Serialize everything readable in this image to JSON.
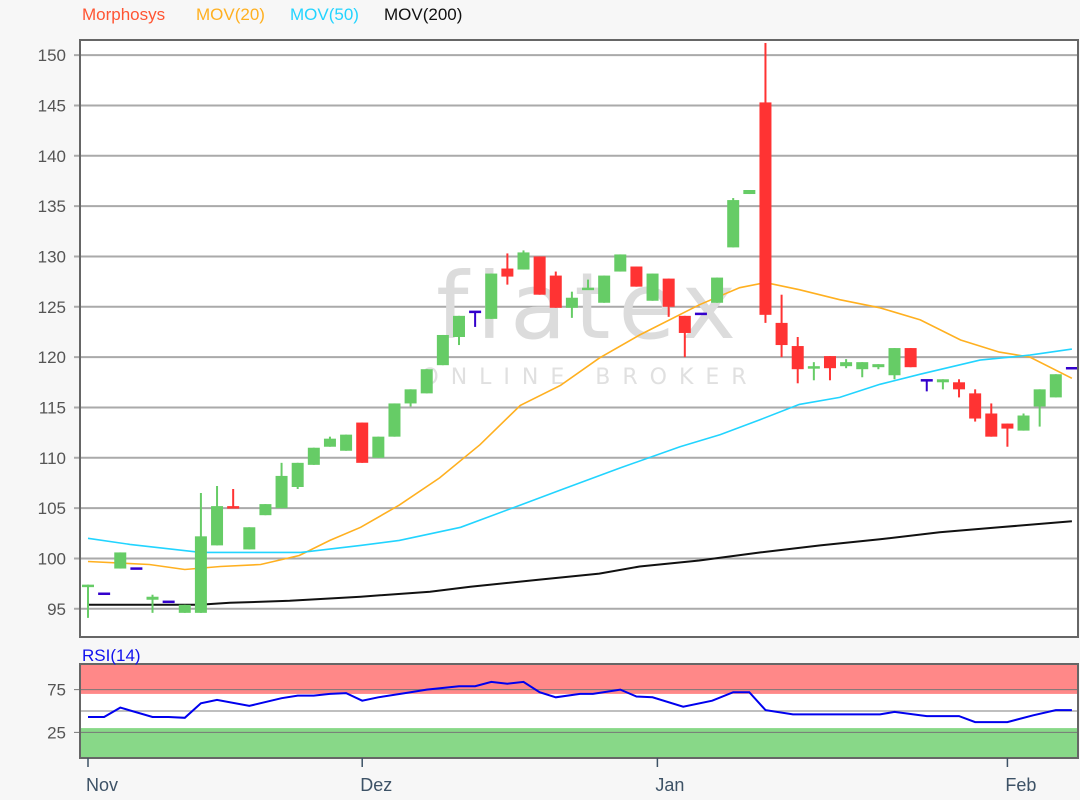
{
  "watermark": {
    "logo": "flatex",
    "tagline": "ONLINE BROKER"
  },
  "legend": [
    {
      "label": "Morphosys",
      "color": "#ff5533"
    },
    {
      "label": "MOV(20)",
      "color": "#ffb020"
    },
    {
      "label": "MOV(50)",
      "color": "#22d4ff"
    },
    {
      "label": "MOV(200)",
      "color": "#111111"
    }
  ],
  "rsi_label": "RSI(14)",
  "chart_data": [
    {
      "type": "candlestick",
      "title": "",
      "ylim": [
        92.2,
        151.5
      ],
      "y_ticks": [
        95,
        100,
        105,
        110,
        115,
        120,
        125,
        130,
        135,
        140,
        145,
        150
      ],
      "grid": true,
      "legend_placement": "top-left",
      "x_ticks": [
        {
          "label": "Nov",
          "index": 0
        },
        {
          "label": "Dez",
          "index": 17
        },
        {
          "label": "Jan",
          "index": 35.3
        },
        {
          "label": "Feb",
          "index": 57
        }
      ],
      "colors": {
        "up": "#66cc66",
        "down": "#ff3333",
        "unchanged": "#3300cc"
      },
      "candles_ohlc": [
        [
          97.3,
          97.4,
          94.1,
          97.4
        ],
        [
          96.5,
          96.5,
          96.5,
          96.5
        ],
        [
          99.0,
          100.6,
          99.0,
          100.6
        ],
        [
          99.0,
          99.0,
          99.0,
          99.0
        ],
        [
          95.9,
          96.4,
          94.6,
          96.2
        ],
        [
          95.7,
          95.7,
          95.7,
          95.7
        ],
        [
          94.6,
          95.4,
          94.6,
          95.4
        ],
        [
          94.6,
          106.5,
          94.6,
          102.2
        ],
        [
          101.3,
          107.2,
          101.3,
          105.2
        ],
        [
          105.2,
          106.9,
          105.0,
          105.0
        ],
        [
          100.9,
          103.1,
          100.9,
          103.1
        ],
        [
          104.3,
          105.4,
          104.3,
          105.4
        ],
        [
          105.0,
          109.5,
          105.0,
          108.2
        ],
        [
          107.1,
          109.5,
          106.9,
          109.5
        ],
        [
          109.3,
          111.0,
          109.3,
          111.0
        ],
        [
          111.1,
          112.1,
          111.1,
          111.9
        ],
        [
          110.7,
          112.3,
          110.7,
          112.3
        ],
        [
          113.5,
          113.5,
          109.5,
          109.5
        ],
        [
          110.0,
          112.1,
          110.0,
          112.1
        ],
        [
          112.1,
          115.4,
          112.1,
          115.4
        ],
        [
          115.4,
          116.8,
          115.1,
          116.8
        ],
        [
          116.4,
          118.8,
          116.4,
          118.8
        ],
        [
          119.2,
          122.2,
          119.2,
          122.2
        ],
        [
          122.0,
          124.1,
          121.2,
          124.1
        ],
        [
          124.5,
          124.5,
          123.0,
          124.5
        ],
        [
          123.8,
          128.3,
          123.8,
          128.3
        ],
        [
          128.8,
          130.3,
          127.2,
          128.0
        ],
        [
          128.7,
          130.6,
          128.7,
          130.4
        ],
        [
          130.0,
          130.0,
          126.2,
          126.2
        ],
        [
          128.1,
          128.5,
          124.9,
          124.9
        ],
        [
          124.9,
          126.5,
          123.9,
          125.9
        ],
        [
          126.8,
          127.7,
          126.8,
          126.9
        ],
        [
          125.4,
          128.1,
          125.4,
          128.1
        ],
        [
          128.5,
          130.2,
          128.5,
          130.2
        ],
        [
          129.0,
          129.0,
          127.0,
          127.0
        ],
        [
          125.6,
          128.3,
          125.6,
          128.3
        ],
        [
          127.8,
          127.8,
          124.0,
          125.0
        ],
        [
          124.1,
          124.1,
          120.0,
          122.4
        ],
        [
          124.3,
          124.3,
          124.3,
          124.3
        ],
        [
          125.4,
          127.9,
          125.4,
          127.9
        ],
        [
          130.9,
          135.8,
          130.9,
          135.6
        ],
        [
          136.2,
          136.6,
          136.2,
          136.6
        ],
        [
          145.3,
          151.2,
          123.4,
          124.2
        ],
        [
          123.4,
          126.2,
          120.0,
          121.2
        ],
        [
          121.1,
          122.0,
          117.4,
          118.8
        ],
        [
          118.9,
          119.5,
          117.7,
          119.1
        ],
        [
          120.1,
          120.1,
          117.7,
          118.9
        ],
        [
          119.1,
          119.8,
          118.9,
          119.5
        ],
        [
          118.8,
          119.5,
          118.0,
          119.5
        ],
        [
          119.0,
          119.3,
          118.8,
          119.3
        ],
        [
          118.2,
          120.9,
          117.8,
          120.9
        ],
        [
          120.9,
          120.9,
          119.0,
          119.0
        ],
        [
          117.7,
          117.7,
          116.6,
          117.7
        ],
        [
          117.5,
          117.8,
          116.8,
          117.8
        ],
        [
          117.5,
          117.8,
          116.0,
          116.8
        ],
        [
          116.4,
          116.8,
          113.6,
          113.9
        ],
        [
          114.4,
          115.4,
          112.1,
          112.1
        ],
        [
          113.4,
          113.4,
          111.1,
          112.9
        ],
        [
          112.7,
          114.4,
          112.7,
          114.2
        ],
        [
          115.1,
          116.8,
          113.1,
          116.8
        ],
        [
          116.0,
          118.3,
          116.0,
          118.3
        ],
        [
          118.9,
          118.9,
          118.9,
          118.9
        ]
      ],
      "series": [
        {
          "name": "MOV(20)",
          "color": "#ffb020",
          "points": [
            [
              0,
              99.7
            ],
            [
              3.8,
              99.4
            ],
            [
              6,
              98.9
            ],
            [
              8.2,
              99.2
            ],
            [
              10.7,
              99.4
            ],
            [
              13.1,
              100.3
            ],
            [
              15,
              101.8
            ],
            [
              16.9,
              103.1
            ],
            [
              19.3,
              105.3
            ],
            [
              21.8,
              108.0
            ],
            [
              24.3,
              111.3
            ],
            [
              26.8,
              115.2
            ],
            [
              29.3,
              117.2
            ],
            [
              31.7,
              119.9
            ],
            [
              34.2,
              122.2
            ],
            [
              37.9,
              125.2
            ],
            [
              40.4,
              126.9
            ],
            [
              42,
              127.4
            ],
            [
              44.1,
              126.7
            ],
            [
              46.6,
              125.7
            ],
            [
              49.1,
              124.9
            ],
            [
              51.6,
              123.7
            ],
            [
              54.1,
              121.7
            ],
            [
              56.5,
              120.5
            ],
            [
              58.4,
              120.0
            ],
            [
              61,
              117.9
            ]
          ]
        },
        {
          "name": "MOV(50)",
          "color": "#22d4ff",
          "points": [
            [
              0,
              102.0
            ],
            [
              2.6,
              101.4
            ],
            [
              7,
              100.6
            ],
            [
              13.2,
              100.6
            ],
            [
              16.9,
              101.3
            ],
            [
              19.3,
              101.8
            ],
            [
              23.1,
              103.1
            ],
            [
              26.8,
              105.3
            ],
            [
              29.3,
              106.8
            ],
            [
              33,
              109.0
            ],
            [
              36.7,
              111.1
            ],
            [
              39.2,
              112.3
            ],
            [
              41.7,
              113.8
            ],
            [
              44.1,
              115.3
            ],
            [
              46.6,
              116.0
            ],
            [
              49.1,
              117.3
            ],
            [
              51.6,
              118.3
            ],
            [
              55.3,
              119.7
            ],
            [
              58.4,
              120.2
            ],
            [
              61,
              120.8
            ]
          ]
        },
        {
          "name": "MOV(200)",
          "color": "#111111",
          "points": [
            [
              0,
              95.4
            ],
            [
              6.9,
              95.4
            ],
            [
              8.8,
              95.6
            ],
            [
              12.5,
              95.8
            ],
            [
              16.9,
              96.2
            ],
            [
              21.2,
              96.7
            ],
            [
              23.7,
              97.2
            ],
            [
              28,
              97.9
            ],
            [
              31.7,
              98.5
            ],
            [
              34.2,
              99.2
            ],
            [
              37.9,
              99.8
            ],
            [
              41.7,
              100.6
            ],
            [
              45.4,
              101.3
            ],
            [
              49.1,
              101.9
            ],
            [
              52.8,
              102.6
            ],
            [
              56.5,
              103.1
            ],
            [
              61,
              103.7
            ]
          ]
        }
      ]
    },
    {
      "type": "line",
      "title": "RSI(14)",
      "ylim": [
        -5,
        105
      ],
      "y_ticks": [
        25,
        75
      ],
      "reference_line": 50,
      "bands": [
        {
          "from": 70,
          "to": 100,
          "color": "#ff8888"
        },
        {
          "from": 0,
          "to": 30,
          "color": "#88d888"
        }
      ],
      "series": [
        {
          "name": "RSI(14)",
          "color": "#0000ee",
          "points": [
            [
              0,
              43
            ],
            [
              1,
              43
            ],
            [
              2,
              54
            ],
            [
              4,
              43
            ],
            [
              5,
              43
            ],
            [
              6,
              42
            ],
            [
              7,
              59
            ],
            [
              8,
              63
            ],
            [
              10,
              56
            ],
            [
              12,
              65
            ],
            [
              13,
              68
            ],
            [
              14,
              68
            ],
            [
              15,
              70
            ],
            [
              16,
              71
            ],
            [
              17,
              62
            ],
            [
              18,
              66
            ],
            [
              20,
              72
            ],
            [
              21,
              75
            ],
            [
              23,
              79
            ],
            [
              24,
              79
            ],
            [
              25,
              84
            ],
            [
              26,
              82
            ],
            [
              27,
              84
            ],
            [
              28,
              72
            ],
            [
              29,
              66
            ],
            [
              30.5,
              70
            ],
            [
              31.3,
              70
            ],
            [
              33,
              75
            ],
            [
              34,
              67
            ],
            [
              35,
              66
            ],
            [
              36.9,
              55
            ],
            [
              38.7,
              62
            ],
            [
              40,
              72
            ],
            [
              41,
              72
            ],
            [
              42,
              51
            ],
            [
              43.7,
              46
            ],
            [
              49.1,
              46
            ],
            [
              50,
              49
            ],
            [
              52,
              44
            ],
            [
              54,
              44
            ],
            [
              55,
              37
            ],
            [
              57,
              37
            ],
            [
              58.6,
              45
            ],
            [
              60,
              51
            ],
            [
              61,
              51
            ]
          ]
        }
      ]
    }
  ]
}
